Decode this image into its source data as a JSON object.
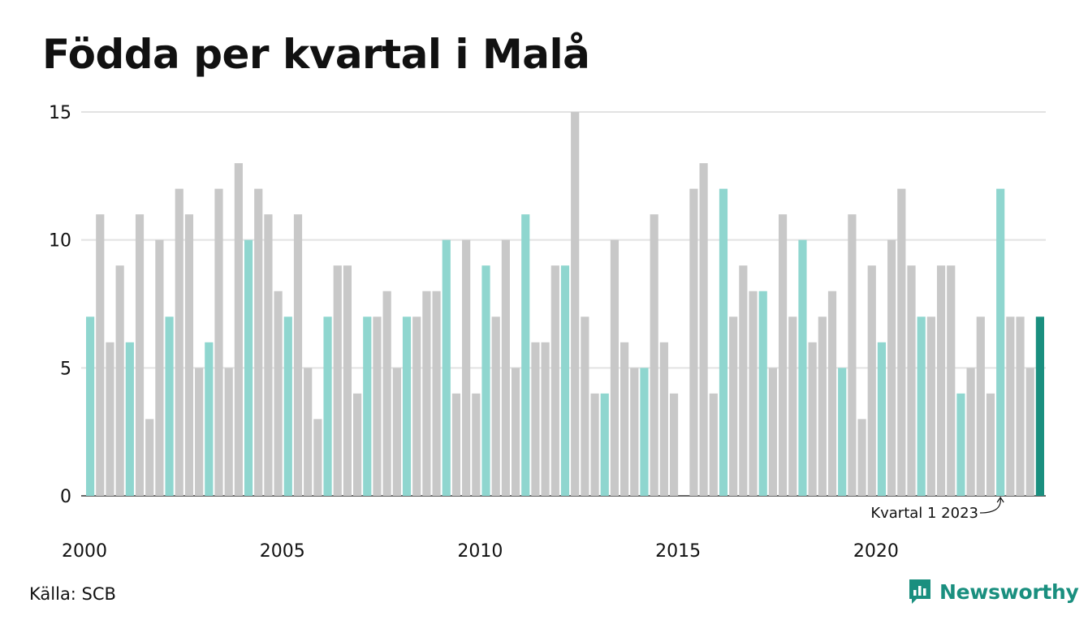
{
  "chart_data": {
    "type": "bar",
    "title": "Födda per kvartal i Malå",
    "xlabel": "",
    "ylabel": "",
    "ylim": [
      0,
      15
    ],
    "yticks": [
      0,
      5,
      10,
      15
    ],
    "x_tick_labels": [
      "2000",
      "2005",
      "2010",
      "2015",
      "2020"
    ],
    "start_year": 2000,
    "annotation": {
      "text": "Kvartal 1 2023",
      "year": 2023,
      "quarter": 1
    },
    "grid": true,
    "colors": {
      "q1": "#8fd6cf",
      "other": "#c8c8c8",
      "latest": "#1a8f7f"
    },
    "values": [
      7,
      11,
      6,
      9,
      6,
      11,
      3,
      10,
      7,
      12,
      11,
      5,
      6,
      12,
      5,
      13,
      10,
      12,
      11,
      8,
      7,
      11,
      5,
      3,
      7,
      9,
      9,
      4,
      7,
      7,
      8,
      5,
      7,
      7,
      8,
      8,
      10,
      4,
      10,
      4,
      9,
      7,
      10,
      5,
      11,
      6,
      6,
      9,
      9,
      15,
      7,
      4,
      4,
      10,
      6,
      5,
      5,
      11,
      6,
      4,
      0,
      12,
      13,
      4,
      12,
      7,
      9,
      8,
      8,
      5,
      11,
      7,
      10,
      6,
      7,
      8,
      5,
      11,
      3,
      9,
      6,
      10,
      12,
      9,
      7,
      7,
      9,
      9,
      4,
      5,
      7,
      4,
      12,
      7,
      7,
      5,
      7
    ]
  },
  "source_label": "Källa: SCB",
  "brand": {
    "name": "Newsworthy",
    "icon": "newsworthy-logo-icon"
  }
}
